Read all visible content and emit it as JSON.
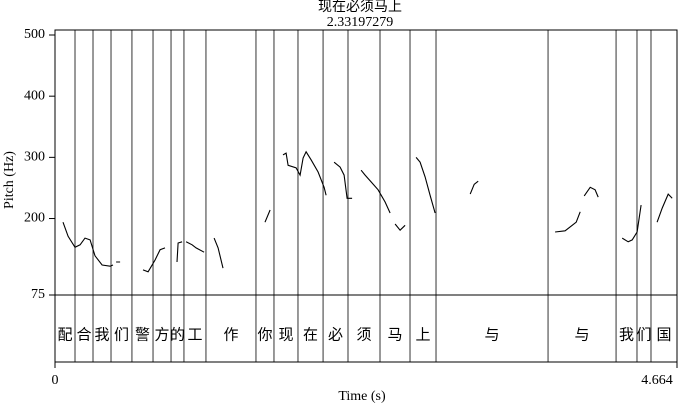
{
  "chart_data": {
    "type": "line",
    "title": "现在必须马上",
    "subtitle": "2.33197279",
    "x_label": "Time (s)",
    "y_label": "Pitch (Hz)",
    "xlim": [
      0,
      4.664
    ],
    "xticks": [
      0,
      4.664
    ],
    "ylim": [
      75,
      500
    ],
    "yticks": [
      75,
      200,
      300,
      400,
      500
    ],
    "series": [
      {
        "color": "#000000",
        "x": [
          0.06,
          0.098,
          0.15,
          0.188,
          0.225,
          0.263,
          0.3,
          0.353,
          0.413,
          0.435,
          null,
          0.458,
          0.488,
          null,
          0.66,
          0.698,
          0.75,
          0.788,
          0.825,
          null,
          0.915,
          0.923,
          0.953,
          null,
          0.983,
          1.028,
          1.058,
          1.118,
          null,
          1.193,
          1.223,
          1.26,
          null,
          1.575,
          1.613,
          null,
          1.71,
          1.733,
          1.748,
          1.808,
          1.838,
          1.86,
          1.883,
          1.92,
          1.973,
          2.018,
          2.033,
          null,
          2.093,
          2.138,
          2.168,
          2.19,
          2.228,
          null,
          2.295,
          2.325,
          2.378,
          2.423,
          2.475,
          2.513,
          null,
          2.55,
          2.588,
          2.625,
          null,
          2.708,
          2.738,
          2.775,
          2.813,
          2.85,
          null,
          3.113,
          3.143,
          3.173,
          null,
          3.75,
          3.825,
          3.878,
          3.908,
          3.938,
          null,
          3.968,
          4.013,
          4.05,
          4.073,
          null,
          4.253,
          4.298,
          4.328,
          4.365,
          4.395,
          null,
          4.515,
          4.553,
          4.598,
          4.628
        ],
        "values": [
          194,
          171,
          153,
          157,
          168,
          165,
          139,
          124,
          122,
          124,
          null,
          129,
          129,
          null,
          116,
          113,
          132,
          149,
          152,
          null,
          129,
          160,
          162,
          null,
          162,
          157,
          152,
          145,
          null,
          168,
          152,
          119,
          null,
          194,
          214,
          null,
          304,
          307,
          287,
          283,
          271,
          299,
          309,
          296,
          276,
          251,
          238,
          null,
          292,
          284,
          271,
          233,
          233,
          null,
          279,
          271,
          258,
          247,
          227,
          209,
          null,
          191,
          181,
          189,
          null,
          300,
          292,
          268,
          238,
          209,
          null,
          240,
          256,
          261,
          null,
          178,
          180,
          189,
          194,
          211,
          null,
          237,
          251,
          247,
          235,
          null,
          168,
          162,
          165,
          178,
          222,
          null,
          194,
          217,
          240,
          233
        ]
      }
    ],
    "tier": {
      "boundaries": [
        0.15,
        0.285,
        0.42,
        0.577,
        0.735,
        0.87,
        0.967,
        1.132,
        1.507,
        1.642,
        1.822,
        2.01,
        2.197,
        2.437,
        2.662,
        2.857,
        3.697,
        4.207,
        4.364,
        4.469
      ],
      "labels": [
        "配",
        "合",
        "我",
        "们",
        "警",
        "方",
        "的",
        "工",
        "作",
        "你",
        "现",
        "在",
        "必",
        "须",
        "马",
        "上",
        "与",
        "与",
        "我",
        "们",
        "国"
      ]
    }
  }
}
